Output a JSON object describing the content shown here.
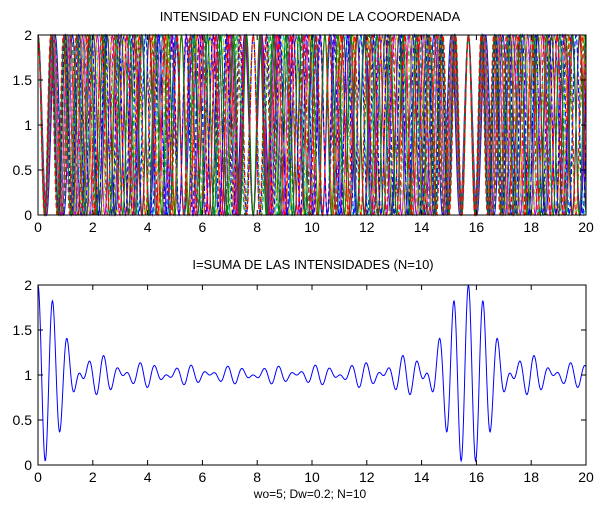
{
  "chart_data": [
    {
      "type": "line",
      "title": "INTENSIDAD EN FUNCION DE LA COORDENADA",
      "xlabel": "",
      "ylabel": "",
      "xlim": [
        0,
        20
      ],
      "ylim": [
        0,
        2
      ],
      "xticks": [
        "0",
        "2",
        "4",
        "6",
        "8",
        "10",
        "12",
        "14",
        "16",
        "18",
        "20"
      ],
      "yticks": [
        "0",
        "0.5",
        "1",
        "1.5",
        "2"
      ],
      "function": "1 + cos(2*w*x)",
      "w_values": [
        5.0,
        5.2,
        5.4,
        5.6,
        5.8,
        6.0,
        6.2,
        6.4,
        6.6,
        6.8
      ],
      "series_colors": [
        "#0000ff",
        "#008000",
        "#ff0000",
        "#00bfbf",
        "#bf00bf",
        "#bfbf00",
        "#404040",
        "#0000ff",
        "#008000",
        "#ff0000"
      ],
      "grid": false
    },
    {
      "type": "line",
      "title": "I=SUMA DE LAS INTENSIDADES (N=10)",
      "xlabel": "wo=5; Dw=0.2; N=10",
      "ylabel": "",
      "xlim": [
        0,
        20
      ],
      "ylim": [
        0,
        2
      ],
      "xticks": [
        "0",
        "2",
        "4",
        "6",
        "8",
        "10",
        "12",
        "14",
        "16",
        "18",
        "20"
      ],
      "yticks": [
        "0",
        "0.5",
        "1",
        "1.5",
        "2"
      ],
      "function": "mean over w of 1 + cos(2*w*x)",
      "series_colors": [
        "#0000ff"
      ],
      "grid": false
    }
  ]
}
